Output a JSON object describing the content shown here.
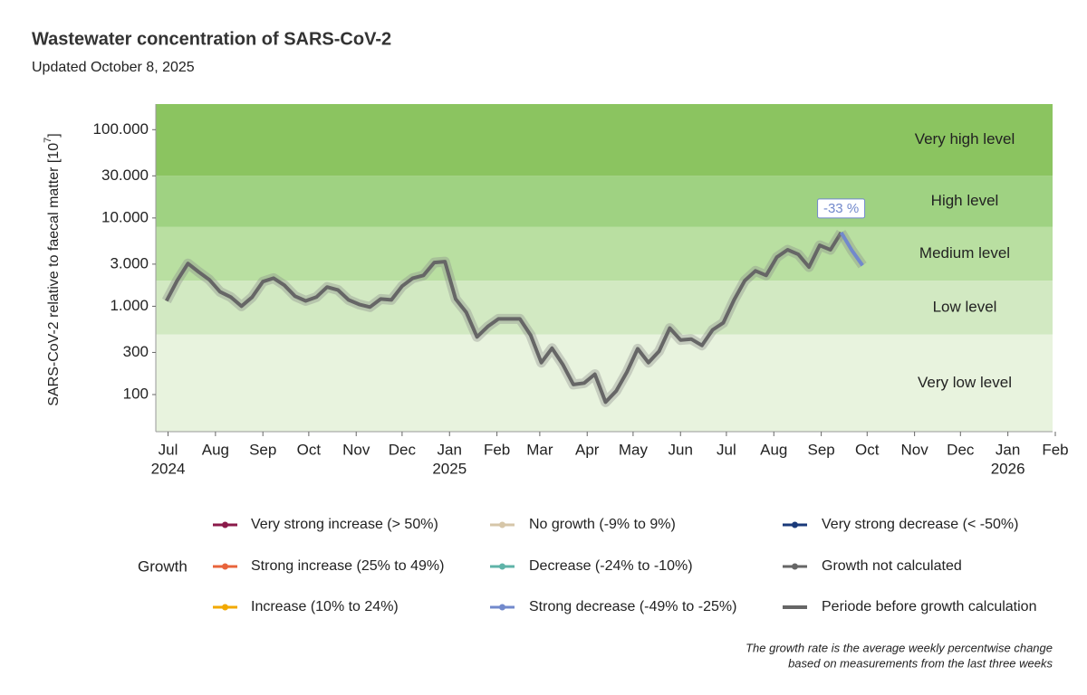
{
  "chart_data": {
    "type": "line",
    "title": "Wastewater concentration of SARS-CoV-2",
    "subtitle": "Updated October 8, 2025",
    "y_label": "SARS-CoV-2 relative to faecal matter [10",
    "y_label_exponent": "7",
    "y_label_end": "]",
    "log_y": true,
    "ylim": [
      38,
      195000
    ],
    "yticks": [
      {
        "value": 100000,
        "label": "100.000"
      },
      {
        "value": 30000,
        "label": "30.000"
      },
      {
        "value": 10000,
        "label": "10.000"
      },
      {
        "value": 3000,
        "label": "3.000"
      },
      {
        "value": 1000,
        "label": "1.000"
      },
      300,
      100
    ],
    "xlim": [
      "2024-06-23",
      "2026-02-01"
    ],
    "xticks": [
      {
        "value": "2024-07-01",
        "label": "Jul"
      },
      {
        "value": "2024-08-01",
        "label": "Aug"
      },
      {
        "value": "2024-09-01",
        "label": "Sep"
      },
      {
        "value": "2024-10-01",
        "label": "Oct"
      },
      {
        "value": "2024-11-01",
        "label": "Nov"
      },
      {
        "value": "2024-12-01",
        "label": "Dec"
      },
      {
        "value": "2025-01-01",
        "label": "Jan"
      },
      {
        "value": "2025-02-01",
        "label": "Feb"
      },
      {
        "value": "2025-03-01",
        "label": "Mar"
      },
      {
        "value": "2025-04-01",
        "label": "Apr"
      },
      {
        "value": "2025-05-01",
        "label": "May"
      },
      {
        "value": "2025-06-01",
        "label": "Jun"
      },
      {
        "value": "2025-07-01",
        "label": "Jul"
      },
      {
        "value": "2025-08-01",
        "label": "Aug"
      },
      {
        "value": "2025-09-01",
        "label": "Sep"
      },
      {
        "value": "2025-10-01",
        "label": "Oct"
      },
      {
        "value": "2025-11-01",
        "label": "Nov"
      },
      {
        "value": "2025-12-01",
        "label": "Dec"
      },
      {
        "value": "2026-01-01",
        "label": "Jan"
      },
      {
        "value": "2026-02-01",
        "label": "Feb"
      }
    ],
    "xtick_years": [
      {
        "value": "2024-07-01",
        "label": "2024"
      },
      {
        "value": "2025-01-01",
        "label": "2025"
      },
      {
        "value": "2026-01-01",
        "label": "2026"
      }
    ],
    "bands": [
      {
        "name": "Very low level",
        "from": 38,
        "to": 480,
        "color": "#e8f3de"
      },
      {
        "name": "Low level",
        "from": 480,
        "to": 1950,
        "color": "#d2e9c2"
      },
      {
        "name": "Medium level",
        "from": 1950,
        "to": 7900,
        "color": "#b9dfa1"
      },
      {
        "name": "High level",
        "from": 7900,
        "to": 30000,
        "color": "#9fd282"
      },
      {
        "name": "Very high level",
        "from": 30000,
        "to": 195000,
        "color": "#8bc460"
      }
    ],
    "x": [
      "2024-06-30",
      "2024-07-07",
      "2024-07-14",
      "2024-07-21",
      "2024-07-28",
      "2024-08-04",
      "2024-08-11",
      "2024-08-18",
      "2024-08-25",
      "2024-09-01",
      "2024-09-08",
      "2024-09-15",
      "2024-09-22",
      "2024-09-29",
      "2024-10-06",
      "2024-10-13",
      "2024-10-20",
      "2024-10-27",
      "2024-11-03",
      "2024-11-10",
      "2024-11-17",
      "2024-11-24",
      "2024-12-01",
      "2024-12-08",
      "2024-12-15",
      "2024-12-22",
      "2024-12-29",
      "2025-01-05",
      "2025-01-12",
      "2025-01-19",
      "2025-01-26",
      "2025-02-02",
      "2025-02-09",
      "2025-02-16",
      "2025-02-23",
      "2025-03-02",
      "2025-03-09",
      "2025-03-16",
      "2025-03-23",
      "2025-03-30",
      "2025-04-06",
      "2025-04-13",
      "2025-04-20",
      "2025-04-27",
      "2025-05-04",
      "2025-05-11",
      "2025-05-18",
      "2025-05-25",
      "2025-06-01",
      "2025-06-08",
      "2025-06-15",
      "2025-06-22",
      "2025-06-29",
      "2025-07-06",
      "2025-07-13",
      "2025-07-20",
      "2025-07-27",
      "2025-08-03",
      "2025-08-10",
      "2025-08-17",
      "2025-08-24",
      "2025-08-31",
      "2025-09-07",
      "2025-09-14",
      "2025-09-21",
      "2025-09-28"
    ],
    "series": [
      {
        "color": "#666666",
        "values": [
          1150,
          1950,
          3050,
          2450,
          2000,
          1460,
          1270,
          1000,
          1270,
          1900,
          2080,
          1730,
          1300,
          1150,
          1270,
          1650,
          1530,
          1180,
          1050,
          980,
          1210,
          1180,
          1690,
          2080,
          2240,
          3130,
          3200,
          1210,
          850,
          450,
          590,
          720,
          720,
          720,
          470,
          230,
          335,
          220,
          130,
          135,
          170,
          82,
          110,
          180,
          330,
          230,
          310,
          565,
          415,
          425,
          360,
          540,
          650,
          1180,
          1950,
          2520,
          2240,
          3600,
          4360,
          3870,
          2780,
          4900,
          4360,
          6850,
          null,
          null
        ]
      },
      {
        "color": "#7289cc",
        "values": [
          null,
          null,
          null,
          null,
          null,
          null,
          null,
          null,
          null,
          null,
          null,
          null,
          null,
          null,
          null,
          null,
          null,
          null,
          null,
          null,
          null,
          null,
          null,
          null,
          null,
          null,
          null,
          null,
          null,
          null,
          null,
          null,
          null,
          null,
          null,
          null,
          null,
          null,
          null,
          null,
          null,
          null,
          null,
          null,
          null,
          null,
          null,
          null,
          null,
          null,
          null,
          null,
          null,
          null,
          null,
          null,
          null,
          null,
          null,
          null,
          null,
          null,
          null,
          6850,
          4300,
          2900
        ]
      }
    ],
    "annotation": "-33 %",
    "legend_title": "Growth",
    "legend": [
      {
        "name": "Very strong increase (> 50%)",
        "color": "#8b1a4a"
      },
      {
        "name": "Strong increase (25% to 49%)",
        "color": "#e8643c"
      },
      {
        "name": "Increase (10% to 24%)",
        "color": "#f2a900"
      },
      {
        "name": "No growth (-9% to 9%)",
        "color": "#d6c6a8"
      },
      {
        "name": "Decrease (-24% to -10%)",
        "color": "#5fb3a8"
      },
      {
        "name": "Strong decrease (-49% to -25%)",
        "color": "#7289cc"
      },
      {
        "name": "Very strong decrease (< -50%)",
        "color": "#1a3a7a"
      },
      {
        "name": "Growth not calculated",
        "color": "#666666"
      },
      {
        "name": "Periode before growth calculation",
        "color": "#666666",
        "dot": false
      }
    ],
    "footnote": [
      "The growth rate is the average weekly percentwise change",
      "based on measurements from the last three weeks"
    ]
  }
}
